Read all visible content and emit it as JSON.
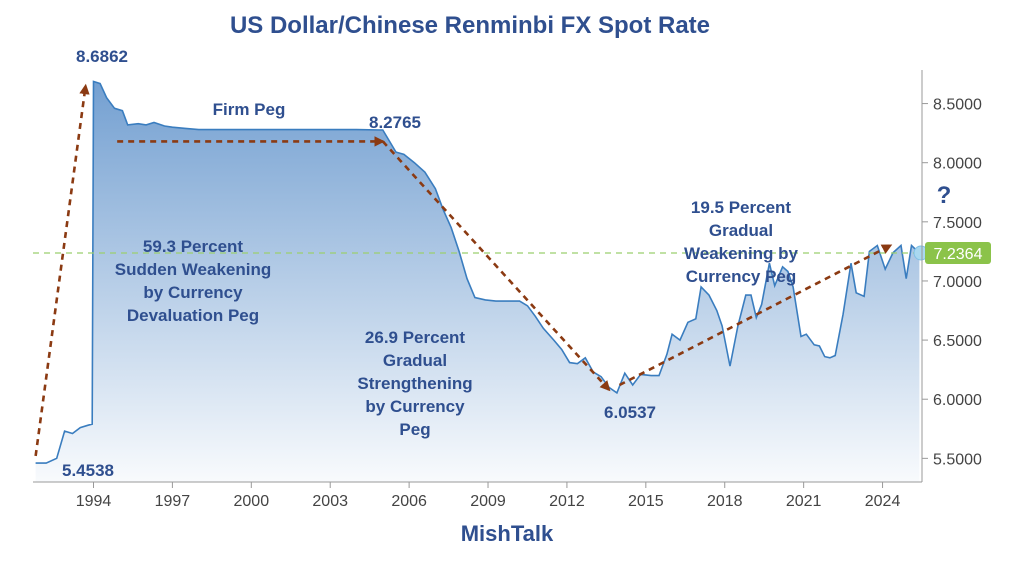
{
  "chart_data": {
    "type": "area",
    "title": "US Dollar/Chinese Renminbi FX Spot Rate",
    "xlabel": "",
    "ylabel": "",
    "credit": "MishTalk",
    "xlim": [
      1991.7,
      2025.5
    ],
    "ylim": [
      5.3,
      8.75
    ],
    "x_ticks": [
      1994,
      1997,
      2000,
      2003,
      2006,
      2009,
      2012,
      2015,
      2018,
      2021,
      2024
    ],
    "y_ticks": [
      5.5,
      6.0,
      6.5,
      7.0,
      7.5,
      8.0,
      8.5
    ],
    "y_tick_labels": [
      "5.5000",
      "6.0000",
      "6.5000",
      "7.0000",
      "7.5000",
      "8.0000",
      "8.5000"
    ],
    "grid": false,
    "current": {
      "value": 7.2364,
      "label": "7.2364",
      "color": "#8bc34a"
    },
    "series": [
      {
        "color": "#3a7dbf",
        "points": [
          [
            1991.8,
            5.46
          ],
          [
            1992.2,
            5.46
          ],
          [
            1992.6,
            5.5
          ],
          [
            1992.9,
            5.73
          ],
          [
            1993.2,
            5.71
          ],
          [
            1993.5,
            5.76
          ],
          [
            1993.8,
            5.78
          ],
          [
            1993.95,
            5.79
          ],
          [
            1994.0,
            8.6862
          ],
          [
            1994.25,
            8.67
          ],
          [
            1994.5,
            8.55
          ],
          [
            1994.8,
            8.46
          ],
          [
            1995.1,
            8.44
          ],
          [
            1995.3,
            8.32
          ],
          [
            1995.7,
            8.33
          ],
          [
            1996.0,
            8.32
          ],
          [
            1996.3,
            8.34
          ],
          [
            1996.7,
            8.31
          ],
          [
            1997.0,
            8.3
          ],
          [
            1997.5,
            8.29
          ],
          [
            1998.0,
            8.28
          ],
          [
            1999.0,
            8.28
          ],
          [
            2000.0,
            8.28
          ],
          [
            2001.0,
            8.28
          ],
          [
            2002.0,
            8.28
          ],
          [
            2003.0,
            8.28
          ],
          [
            2004.0,
            8.28
          ],
          [
            2005.0,
            8.2765
          ],
          [
            2005.5,
            8.09
          ],
          [
            2005.8,
            8.07
          ],
          [
            2006.2,
            8.0
          ],
          [
            2006.6,
            7.92
          ],
          [
            2007.0,
            7.78
          ],
          [
            2007.3,
            7.6
          ],
          [
            2007.6,
            7.45
          ],
          [
            2007.9,
            7.25
          ],
          [
            2008.2,
            7.02
          ],
          [
            2008.5,
            6.86
          ],
          [
            2008.9,
            6.84
          ],
          [
            2009.3,
            6.83
          ],
          [
            2009.8,
            6.83
          ],
          [
            2010.2,
            6.83
          ],
          [
            2010.5,
            6.79
          ],
          [
            2010.8,
            6.7
          ],
          [
            2011.1,
            6.6
          ],
          [
            2011.5,
            6.5
          ],
          [
            2011.8,
            6.42
          ],
          [
            2012.1,
            6.31
          ],
          [
            2012.4,
            6.3
          ],
          [
            2012.7,
            6.35
          ],
          [
            2013.0,
            6.23
          ],
          [
            2013.3,
            6.19
          ],
          [
            2013.6,
            6.1
          ],
          [
            2013.9,
            6.0537
          ],
          [
            2014.2,
            6.22
          ],
          [
            2014.5,
            6.12
          ],
          [
            2014.8,
            6.21
          ],
          [
            2015.2,
            6.2
          ],
          [
            2015.5,
            6.2
          ],
          [
            2015.8,
            6.38
          ],
          [
            2016.0,
            6.55
          ],
          [
            2016.3,
            6.5
          ],
          [
            2016.6,
            6.65
          ],
          [
            2016.9,
            6.68
          ],
          [
            2017.1,
            6.95
          ],
          [
            2017.4,
            6.88
          ],
          [
            2017.7,
            6.75
          ],
          [
            2017.9,
            6.62
          ],
          [
            2018.2,
            6.28
          ],
          [
            2018.5,
            6.62
          ],
          [
            2018.8,
            6.88
          ],
          [
            2019.0,
            6.88
          ],
          [
            2019.2,
            6.69
          ],
          [
            2019.4,
            6.8
          ],
          [
            2019.7,
            7.15
          ],
          [
            2019.9,
            6.96
          ],
          [
            2020.2,
            7.12
          ],
          [
            2020.4,
            7.08
          ],
          [
            2020.6,
            6.95
          ],
          [
            2020.9,
            6.53
          ],
          [
            2021.1,
            6.55
          ],
          [
            2021.4,
            6.46
          ],
          [
            2021.6,
            6.45
          ],
          [
            2021.8,
            6.36
          ],
          [
            2022.0,
            6.35
          ],
          [
            2022.2,
            6.37
          ],
          [
            2022.5,
            6.72
          ],
          [
            2022.8,
            7.15
          ],
          [
            2023.0,
            6.9
          ],
          [
            2023.3,
            6.87
          ],
          [
            2023.5,
            7.25
          ],
          [
            2023.8,
            7.3
          ],
          [
            2024.1,
            7.1
          ],
          [
            2024.4,
            7.24
          ],
          [
            2024.7,
            7.3
          ],
          [
            2024.9,
            7.02
          ],
          [
            2025.1,
            7.3
          ],
          [
            2025.4,
            7.2364
          ]
        ]
      }
    ],
    "value_labels": [
      {
        "text": "8.6862",
        "x": 1994.0,
        "y": 8.6862
      },
      {
        "text": "8.2765",
        "x": 2005.0,
        "y": 8.2765
      },
      {
        "text": "6.0537",
        "x": 2013.9,
        "y": 6.0537
      },
      {
        "text": "5.4538",
        "x": 1992.0,
        "y": 5.4538
      }
    ],
    "annotations": [
      {
        "lines": [
          "Firm Peg"
        ]
      },
      {
        "lines": [
          "59.3 Percent",
          "Sudden Weakening",
          "by Currency",
          "Devaluation Peg"
        ]
      },
      {
        "lines": [
          "26.9 Percent",
          "Gradual",
          "Strengthening",
          "by Currency",
          "Peg"
        ]
      },
      {
        "lines": [
          "19.5 Percent",
          "Gradual",
          "Weakening by",
          "Currency Peg"
        ]
      },
      {
        "lines": [
          "?"
        ]
      }
    ],
    "arrows": [
      {
        "from": [
          1991.8,
          5.52
        ],
        "to": [
          1993.7,
          8.65
        ]
      },
      {
        "from": [
          1994.9,
          8.18
        ],
        "to": [
          2005.0,
          8.18
        ]
      },
      {
        "from": [
          2005.0,
          8.18
        ],
        "to": [
          2013.6,
          6.08
        ]
      },
      {
        "from": [
          2014.0,
          6.12
        ],
        "to": [
          2024.3,
          7.3
        ]
      }
    ]
  }
}
